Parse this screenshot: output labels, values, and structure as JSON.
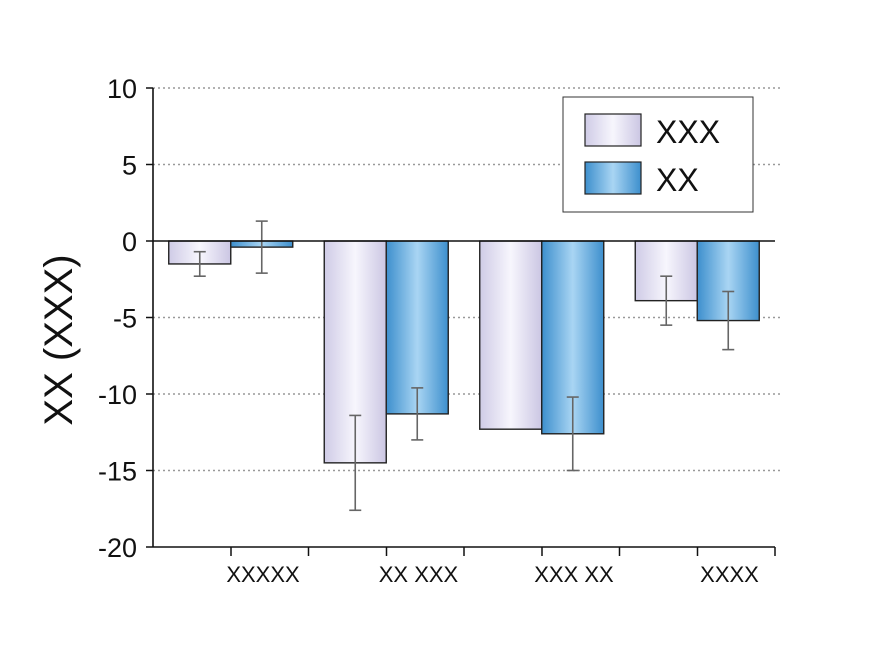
{
  "chart_data": {
    "type": "bar",
    "ylabel": "XX (XXX)",
    "ylim": [
      -20,
      10
    ],
    "yticks": [
      10,
      5,
      0,
      -5,
      -10,
      -15,
      -20
    ],
    "grid": "horizontal dotted",
    "legend_position": "top-right",
    "categories": [
      "XXXXX",
      "XX XXX",
      "XXX XX",
      "XXXX"
    ],
    "series": [
      {
        "name": "XXX",
        "values": [
          -1.5,
          -14.5,
          -12.3,
          -3.9
        ],
        "error": [
          0.8,
          3.1,
          0,
          1.6
        ],
        "color": "#e4e1f3"
      },
      {
        "name": "XX",
        "values": [
          -0.4,
          -11.3,
          -12.6,
          -5.2
        ],
        "error": [
          1.7,
          1.7,
          2.4,
          1.9
        ],
        "color": "#64acdd"
      }
    ]
  }
}
